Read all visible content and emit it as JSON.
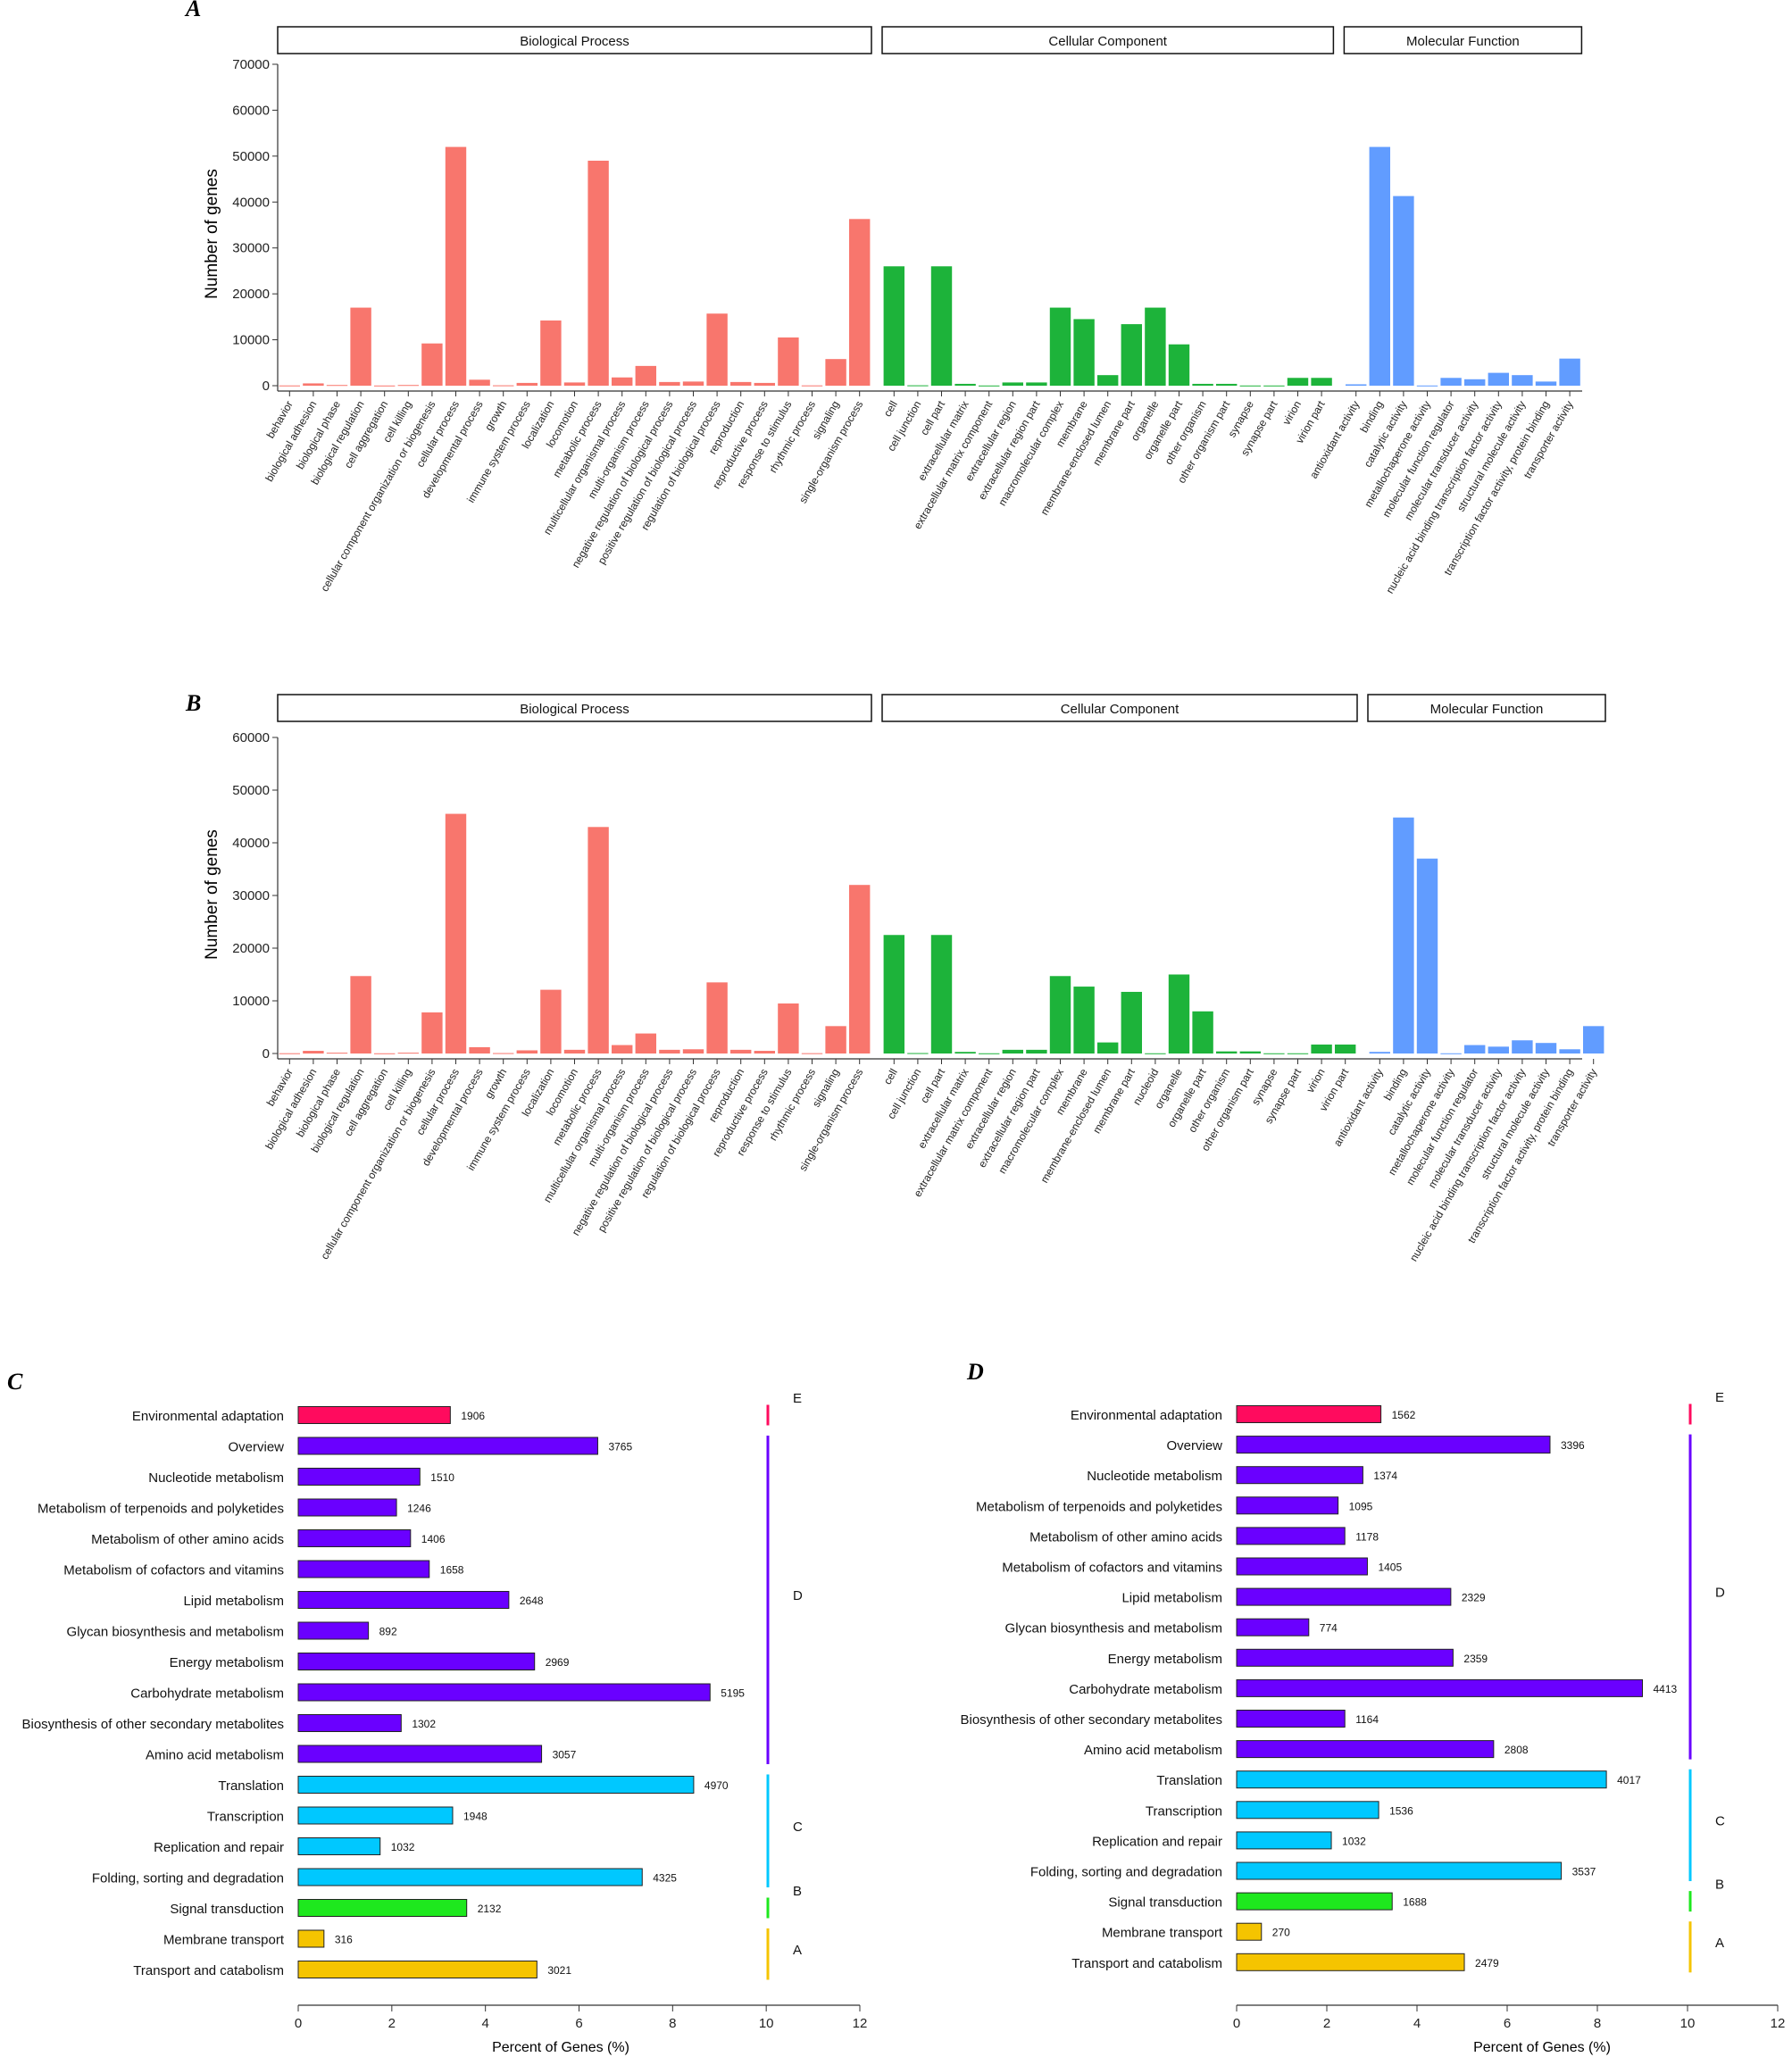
{
  "panels": {
    "A": {
      "letter": "A",
      "ylabel": "Number of genes"
    },
    "B": {
      "letter": "B",
      "ylabel": "Number of genes"
    },
    "C": {
      "letter": "C",
      "xlabel": "Percent of Genes (%)"
    },
    "D": {
      "letter": "D",
      "xlabel": "Percent of Genes (%)"
    }
  },
  "colors": {
    "biological_process": "#f8766d",
    "cellular_component": "#1db33a",
    "molecular_function": "#619cff",
    "kegg_E": "#ff0b5e",
    "kegg_D": "#6a00ff",
    "kegg_C": "#00c8ff",
    "kegg_B": "#1ee81e",
    "kegg_A": "#f5c400"
  },
  "chart_data": [
    {
      "id": "A",
      "type": "bar",
      "ylabel": "Number of genes",
      "ylim": [
        0,
        70000
      ],
      "yticks": [
        "0",
        "10000",
        "20000",
        "30000",
        "40000",
        "50000",
        "60000",
        "70000"
      ],
      "groups": [
        {
          "name": "Biological Process",
          "color_key": "biological_process",
          "categories": [
            "behavior",
            "biological adhesion",
            "biological phase",
            "biological regulation",
            "cell aggregation",
            "cell killing",
            "cellular component organization or biogenesis",
            "cellular process",
            "developmental process",
            "growth",
            "immune system process",
            "localization",
            "locomotion",
            "metabolic process",
            "multicellular organismal process",
            "multi-organism process",
            "negative regulation of biological process",
            "positive regulation of biological process",
            "regulation of biological process",
            "reproduction",
            "reproductive process",
            "response to stimulus",
            "rhythmic process",
            "signaling",
            "single-organism process"
          ],
          "values": [
            50,
            500,
            150,
            17000,
            40,
            150,
            9200,
            52000,
            1300,
            80,
            600,
            14200,
            700,
            49000,
            1800,
            4300,
            800,
            900,
            15700,
            800,
            600,
            10500,
            60,
            5800,
            36300
          ]
        },
        {
          "name": "Cellular Component",
          "color_key": "cellular_component",
          "categories": [
            "cell",
            "cell junction",
            "cell part",
            "extracellular matrix",
            "extracellular matrix component",
            "extracellular region",
            "extracellular region part",
            "macromolecular complex",
            "membrane",
            "membrane-enclosed lumen",
            "membrane part",
            "organelle",
            "organelle part",
            "other organism",
            "other organism part",
            "synapse",
            "synapse part",
            "virion",
            "virion part"
          ],
          "values": [
            26000,
            80,
            26000,
            400,
            40,
            700,
            700,
            17000,
            14500,
            2300,
            13400,
            17000,
            9000,
            400,
            400,
            40,
            40,
            1700,
            1700
          ]
        },
        {
          "name": "Molecular Function",
          "color_key": "molecular_function",
          "categories": [
            "antioxidant activity",
            "binding",
            "catalytic activity",
            "metallochaperone activity",
            "molecular function regulator",
            "molecular transducer activity",
            "nucleic acid binding transcription factor activity",
            "structural molecule activity",
            "transcription factor activity, protein binding",
            "transporter activity"
          ],
          "values": [
            300,
            52000,
            41300,
            40,
            1700,
            1400,
            2800,
            2300,
            900,
            5900
          ]
        }
      ]
    },
    {
      "id": "B",
      "type": "bar",
      "ylabel": "Number of genes",
      "ylim": [
        0,
        60000
      ],
      "yticks": [
        "0",
        "10000",
        "20000",
        "30000",
        "40000",
        "50000",
        "60000"
      ],
      "groups": [
        {
          "name": "Biological Process",
          "color_key": "biological_process",
          "categories": [
            "behavior",
            "biological adhesion",
            "biological phase",
            "biological regulation",
            "cell aggregation",
            "cell killing",
            "cellular component organization or biogenesis",
            "cellular process",
            "developmental process",
            "growth",
            "immune system process",
            "localization",
            "locomotion",
            "metabolic process",
            "multicellular organismal process",
            "multi-organism process",
            "negative regulation of biological process",
            "positive regulation of biological process",
            "regulation of biological process",
            "reproduction",
            "reproductive process",
            "response to stimulus",
            "rhythmic process",
            "signaling",
            "single-organism process"
          ],
          "values": [
            50,
            500,
            150,
            14700,
            40,
            150,
            7800,
            45500,
            1200,
            80,
            600,
            12100,
            700,
            43000,
            1600,
            3800,
            700,
            800,
            13500,
            700,
            500,
            9500,
            60,
            5200,
            32000
          ]
        },
        {
          "name": "Cellular Component",
          "color_key": "cellular_component",
          "categories": [
            "cell",
            "cell junction",
            "cell part",
            "extracellular matrix",
            "extracellular matrix component",
            "extracellular region",
            "extracellular region part",
            "macromolecular complex",
            "membrane",
            "membrane-enclosed lumen",
            "membrane part",
            "nucleoid",
            "organelle",
            "organelle part",
            "other organism",
            "other organism part",
            "synapse",
            "synapse part",
            "virion",
            "virion part"
          ],
          "values": [
            22500,
            80,
            22500,
            300,
            40,
            700,
            700,
            14700,
            12700,
            2100,
            11700,
            40,
            15000,
            8000,
            400,
            400,
            40,
            40,
            1700,
            1700
          ]
        },
        {
          "name": "Molecular Function",
          "color_key": "molecular_function",
          "categories": [
            "antioxidant activity",
            "binding",
            "catalytic activity",
            "metallochaperone activity",
            "molecular function regulator",
            "molecular transducer activity",
            "nucleic acid binding transcription factor activity",
            "structural molecule activity",
            "transcription factor activity, protein binding",
            "transporter activity"
          ],
          "values": [
            300,
            44800,
            37000,
            40,
            1600,
            1300,
            2500,
            2000,
            800,
            5200
          ]
        }
      ]
    },
    {
      "id": "C",
      "type": "bar",
      "orientation": "horizontal",
      "xlabel": "Percent of Genes (%)",
      "xlim": [
        0,
        12
      ],
      "xticks": [
        "0",
        "2",
        "4",
        "6",
        "8",
        "10",
        "12"
      ],
      "rows": [
        {
          "label": "Environmental adaptation",
          "percent": 3.25,
          "count": "1906",
          "class": "E"
        },
        {
          "label": "Overview",
          "percent": 6.4,
          "count": "3765",
          "class": "D"
        },
        {
          "label": "Nucleotide metabolism",
          "percent": 2.6,
          "count": "1510",
          "class": "D"
        },
        {
          "label": "Metabolism of terpenoids and polyketides",
          "percent": 2.1,
          "count": "1246",
          "class": "D"
        },
        {
          "label": "Metabolism of other amino acids",
          "percent": 2.4,
          "count": "1406",
          "class": "D"
        },
        {
          "label": "Metabolism of cofactors and vitamins",
          "percent": 2.8,
          "count": "1658",
          "class": "D"
        },
        {
          "label": "Lipid metabolism",
          "percent": 4.5,
          "count": "2648",
          "class": "D"
        },
        {
          "label": "Glycan biosynthesis and metabolism",
          "percent": 1.5,
          "count": "892",
          "class": "D"
        },
        {
          "label": "Energy metabolism",
          "percent": 5.05,
          "count": "2969",
          "class": "D"
        },
        {
          "label": "Carbohydrate metabolism",
          "percent": 8.8,
          "count": "5195",
          "class": "D"
        },
        {
          "label": "Biosynthesis of other secondary metabolites",
          "percent": 2.2,
          "count": "1302",
          "class": "D"
        },
        {
          "label": "Amino acid metabolism",
          "percent": 5.2,
          "count": "3057",
          "class": "D"
        },
        {
          "label": "Translation",
          "percent": 8.45,
          "count": "4970",
          "class": "C"
        },
        {
          "label": "Transcription",
          "percent": 3.3,
          "count": "1948",
          "class": "C"
        },
        {
          "label": "Replication and repair",
          "percent": 1.75,
          "count": "1032",
          "class": "C"
        },
        {
          "label": "Folding, sorting and degradation",
          "percent": 7.35,
          "count": "4325",
          "class": "C"
        },
        {
          "label": "Signal transduction",
          "percent": 3.6,
          "count": "2132",
          "class": "B"
        },
        {
          "label": "Membrane transport",
          "percent": 0.55,
          "count": "316",
          "class": "A"
        },
        {
          "label": "Transport and catabolism",
          "percent": 5.1,
          "count": "3021",
          "class": "A"
        }
      ],
      "class_labels": [
        "E",
        "D",
        "C",
        "B",
        "A"
      ]
    },
    {
      "id": "D",
      "type": "bar",
      "orientation": "horizontal",
      "xlabel": "Percent of Genes (%)",
      "xlim": [
        0,
        12
      ],
      "xticks": [
        "0",
        "2",
        "4",
        "6",
        "8",
        "10",
        "12"
      ],
      "rows": [
        {
          "label": "Environmental adaptation",
          "percent": 3.2,
          "count": "1562",
          "class": "E"
        },
        {
          "label": "Overview",
          "percent": 6.95,
          "count": "3396",
          "class": "D"
        },
        {
          "label": "Nucleotide metabolism",
          "percent": 2.8,
          "count": "1374",
          "class": "D"
        },
        {
          "label": "Metabolism of terpenoids and polyketides",
          "percent": 2.25,
          "count": "1095",
          "class": "D"
        },
        {
          "label": "Metabolism of other amino acids",
          "percent": 2.4,
          "count": "1178",
          "class": "D"
        },
        {
          "label": "Metabolism of cofactors and vitamins",
          "percent": 2.9,
          "count": "1405",
          "class": "D"
        },
        {
          "label": "Lipid metabolism",
          "percent": 4.75,
          "count": "2329",
          "class": "D"
        },
        {
          "label": "Glycan biosynthesis and metabolism",
          "percent": 1.6,
          "count": "774",
          "class": "D"
        },
        {
          "label": "Energy metabolism",
          "percent": 4.8,
          "count": "2359",
          "class": "D"
        },
        {
          "label": "Carbohydrate metabolism",
          "percent": 9.0,
          "count": "4413",
          "class": "D"
        },
        {
          "label": "Biosynthesis of other secondary metabolites",
          "percent": 2.4,
          "count": "1164",
          "class": "D"
        },
        {
          "label": "Amino acid metabolism",
          "percent": 5.7,
          "count": "2808",
          "class": "D"
        },
        {
          "label": "Translation",
          "percent": 8.2,
          "count": "4017",
          "class": "C"
        },
        {
          "label": "Transcription",
          "percent": 3.15,
          "count": "1536",
          "class": "C"
        },
        {
          "label": "Replication and repair",
          "percent": 2.1,
          "count": "1032",
          "class": "C"
        },
        {
          "label": "Folding, sorting and degradation",
          "percent": 7.2,
          "count": "3537",
          "class": "C"
        },
        {
          "label": "Signal transduction",
          "percent": 3.45,
          "count": "1688",
          "class": "B"
        },
        {
          "label": "Membrane transport",
          "percent": 0.55,
          "count": "270",
          "class": "A"
        },
        {
          "label": "Transport and catabolism",
          "percent": 5.05,
          "count": "2479",
          "class": "A"
        }
      ],
      "class_labels": [
        "E",
        "D",
        "C",
        "B",
        "A"
      ]
    }
  ]
}
